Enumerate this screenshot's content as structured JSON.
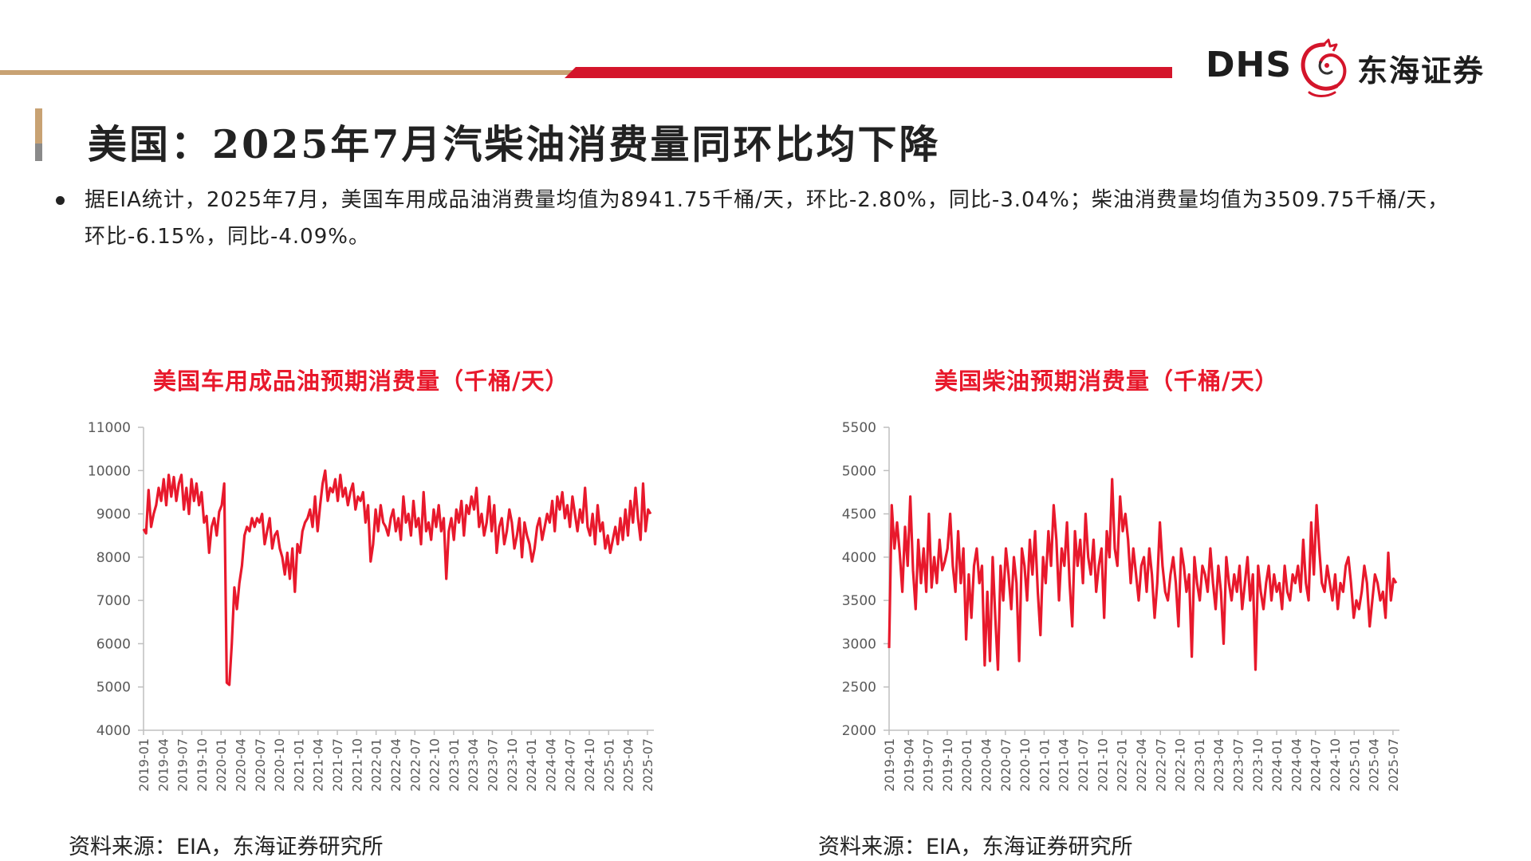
{
  "colors": {
    "accent_red": "#d4152b",
    "gold": "#c8a273",
    "chart_line": "#e8192c",
    "axis": "#bfbfbf",
    "text": "#222222"
  },
  "header": {
    "logo_text": "DHS",
    "logo_cn": "东海证券",
    "logo_icon": "dragon-icon"
  },
  "page": {
    "title": "美国：2025年7月汽柴油消费量同环比均下降",
    "bullet": "据EIA统计，2025年7月，美国车用成品油消费量均值为8941.75千桶/天，环比-2.80%，同比-3.04%；柴油消费量均值为3509.75千桶/天，环比-6.15%，同比-4.09%。"
  },
  "sources": [
    "资料来源：EIA，东海证券研究所",
    "资料来源：EIA，东海证券研究所"
  ],
  "chart_data": [
    {
      "type": "line",
      "title": "美国车用成品油预期消费量（千桶/天）",
      "xlabel": "",
      "ylabel": "",
      "ylim": [
        4000,
        11000
      ],
      "yticks": [
        4000,
        5000,
        6000,
        7000,
        8000,
        9000,
        10000,
        11000
      ],
      "xticks": [
        "2019-01",
        "2019-04",
        "2019-07",
        "2019-10",
        "2020-01",
        "2020-04",
        "2020-07",
        "2020-10",
        "2021-01",
        "2021-04",
        "2021-07",
        "2021-10",
        "2022-01",
        "2022-04",
        "2022-07",
        "2022-10",
        "2023-01",
        "2023-04",
        "2023-07",
        "2023-10",
        "2024-01",
        "2024-04",
        "2024-07",
        "2024-10",
        "2025-01",
        "2025-04",
        "2025-07"
      ],
      "x_start": "2019-01",
      "x_end": "2025-08",
      "grid": false,
      "legend": "none",
      "series": [
        {
          "values": [
            8650,
            8550,
            9550,
            8700,
            9000,
            9200,
            9600,
            9300,
            9800,
            9200,
            9900,
            9400,
            9850,
            9300,
            9700,
            9900,
            9100,
            9600,
            9000,
            9800,
            9300,
            9700,
            9200,
            9500,
            8800,
            8950,
            8100,
            8700,
            8900,
            8500,
            9050,
            9200,
            9700,
            5100,
            5050,
            6000,
            7300,
            6800,
            7400,
            7800,
            8500,
            8700,
            8600,
            8900,
            8700,
            8900,
            8800,
            9000,
            8300,
            8600,
            8900,
            8200,
            8500,
            8600,
            8200,
            8000,
            7600,
            8100,
            7500,
            8200,
            7200,
            8300,
            8100,
            8600,
            8800,
            8900,
            9100,
            8700,
            9400,
            8600,
            9200,
            9700,
            10000,
            9300,
            9600,
            9500,
            9800,
            9300,
            9900,
            9400,
            9600,
            9200,
            9500,
            9700,
            9100,
            9400,
            9300,
            9500,
            8800,
            9200,
            7900,
            8300,
            9100,
            8600,
            9200,
            8800,
            8700,
            8500,
            8900,
            9100,
            8600,
            8900,
            8400,
            9400,
            8800,
            9000,
            8500,
            9300,
            8700,
            8900,
            8300,
            9500,
            8600,
            8800,
            8400,
            9100,
            8700,
            9200,
            8600,
            8900,
            7500,
            8600,
            8900,
            8400,
            9100,
            8800,
            9300,
            8500,
            9200,
            9000,
            9400,
            9100,
            9600,
            8700,
            9000,
            8500,
            8800,
            9400,
            8600,
            9200,
            8100,
            8700,
            8900,
            8300,
            8600,
            9100,
            8800,
            8200,
            8500,
            8900,
            8000,
            8800,
            8500,
            8300,
            7900,
            8200,
            8700,
            8900,
            8400,
            8700,
            9000,
            8800,
            9300,
            8600,
            9400,
            9100,
            9500,
            8900,
            9200,
            8700,
            9400,
            9000,
            8600,
            9100,
            8800,
            9600,
            8700,
            8500,
            9000,
            8300,
            9200,
            8600,
            8800,
            8200,
            8500,
            8100,
            8400,
            8700,
            8300,
            8900,
            8400,
            9100,
            8500,
            9300,
            8800,
            9600,
            8900,
            8400,
            9700,
            8600,
            9100,
            9000
          ]
        }
      ]
    },
    {
      "type": "line",
      "title": "美国柴油预期消费量（千桶/天）",
      "xlabel": "",
      "ylabel": "",
      "ylim": [
        2000,
        5500
      ],
      "yticks": [
        2000,
        2500,
        3000,
        3500,
        4000,
        4500,
        5000,
        5500
      ],
      "xticks": [
        "2019-01",
        "2019-04",
        "2019-07",
        "2019-10",
        "2020-01",
        "2020-04",
        "2020-07",
        "2020-10",
        "2021-01",
        "2021-04",
        "2021-07",
        "2021-10",
        "2022-01",
        "2022-04",
        "2022-07",
        "2022-10",
        "2023-01",
        "2023-04",
        "2023-07",
        "2023-10",
        "2024-01",
        "2024-04",
        "2024-07",
        "2024-10",
        "2025-01",
        "2025-04",
        "2025-07"
      ],
      "x_start": "2019-01",
      "x_end": "2025-08",
      "grid": false,
      "legend": "none",
      "series": [
        {
          "values": [
            2950,
            4600,
            4100,
            4400,
            4050,
            3600,
            4350,
            3900,
            4700,
            3850,
            3400,
            4200,
            3700,
            4100,
            3600,
            4500,
            3650,
            4000,
            3700,
            4200,
            3850,
            3950,
            4100,
            4500,
            3900,
            3600,
            4300,
            3700,
            4100,
            3050,
            3800,
            3300,
            3900,
            4100,
            3700,
            3900,
            2750,
            3600,
            2800,
            4000,
            3300,
            2700,
            3900,
            3500,
            4100,
            3800,
            3400,
            4000,
            3700,
            2800,
            4100,
            3900,
            3500,
            4200,
            3800,
            4300,
            3600,
            3100,
            4000,
            3700,
            4300,
            3900,
            4600,
            4200,
            3500,
            4100,
            3900,
            4400,
            3700,
            3200,
            4300,
            3900,
            4200,
            3700,
            4500,
            4000,
            3800,
            4200,
            3600,
            3900,
            4100,
            3300,
            4300,
            4000,
            4900,
            4100,
            3900,
            4700,
            4300,
            4500,
            4200,
            3700,
            4100,
            3800,
            3500,
            3900,
            4000,
            3600,
            4100,
            3800,
            3300,
            3700,
            4400,
            3900,
            3600,
            3500,
            3800,
            4000,
            3700,
            3200,
            4100,
            3900,
            3600,
            3800,
            2850,
            4000,
            3700,
            3500,
            3900,
            3800,
            3600,
            4100,
            3700,
            3400,
            3900,
            3600,
            3000,
            4000,
            3700,
            3500,
            3800,
            3600,
            3900,
            3400,
            3700,
            4000,
            3500,
            3800,
            2700,
            3900,
            3600,
            3400,
            3700,
            3900,
            3500,
            3800,
            3600,
            3700,
            3400,
            3900,
            3600,
            3500,
            3800,
            3700,
            3900,
            3600,
            4200,
            3700,
            3500,
            4400,
            3800,
            4600,
            4100,
            3700,
            3600,
            3900,
            3700,
            3500,
            3800,
            3400,
            3700,
            3600,
            3900,
            4000,
            3700,
            3300,
            3500,
            3400,
            3600,
            3900,
            3700,
            3200,
            3500,
            3800,
            3700,
            3500,
            3600,
            3300,
            4050,
            3500,
            3750,
            3700
          ]
        }
      ]
    }
  ]
}
